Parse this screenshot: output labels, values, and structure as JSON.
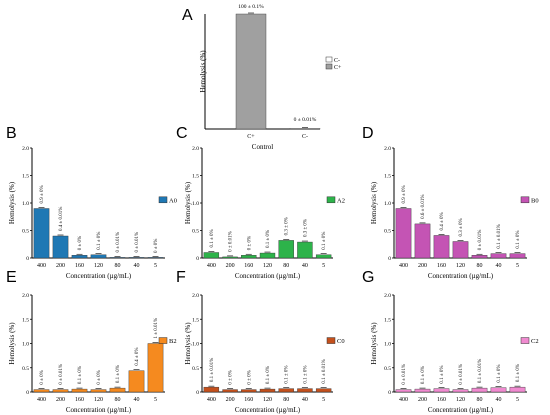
{
  "chart_data": [
    {
      "panel": "A",
      "type": "bar",
      "categories": [
        "C+",
        "C-"
      ],
      "values": [
        100,
        0.01
      ],
      "data_labels": [
        "100 ± 0.1%",
        "0 ± 0.01%"
      ],
      "ylabel": "Hemolysis (%)",
      "xlabel": "Control",
      "ylim": [
        0,
        100
      ],
      "legend": {
        "placement": "right",
        "entries": [
          "C-",
          "C+"
        ],
        "colors": [
          "#ffffff",
          "#a0a0a0"
        ]
      },
      "colors": [
        "#a0a0a0",
        "#ffffff"
      ]
    },
    {
      "panel": "B",
      "type": "bar",
      "categories": [
        "400",
        "200",
        "160",
        "120",
        "80",
        "40",
        "5"
      ],
      "values": [
        0.9,
        0.4,
        0.05,
        0.06,
        0.01,
        0.01,
        0.0
      ],
      "data_labels": [
        "0.9 ± 0%",
        "0.4 ± 0.01%",
        "0 ± 0%",
        "0.1 ± 0%",
        "0 ± 0.01%",
        "0 ± 0.01%",
        "0 ± 0%"
      ],
      "ylabel": "Hemolysis (%)",
      "xlabel": "Concentration (µg/mL)",
      "yticks": [
        "0",
        "0.5",
        "1.0",
        "1.5",
        "2.0"
      ],
      "ylim": [
        0,
        2
      ],
      "legend": {
        "placement": "right",
        "entries": [
          "A0"
        ],
        "colors": [
          "#1f78b4"
        ]
      },
      "color": "#1f78b4"
    },
    {
      "panel": "C",
      "type": "bar",
      "categories": [
        "400",
        "200",
        "160",
        "120",
        "80",
        "40",
        "5"
      ],
      "values": [
        0.1,
        0.02,
        0.05,
        0.09,
        0.32,
        0.29,
        0.06
      ],
      "data_labels": [
        "0.1 ± 0%",
        "0 ± 0.01%",
        "0 ± 0%",
        "0.1 ± 0%",
        "0.3 ± 0%",
        "0.3 ± 0%",
        "0.1 ± 0%"
      ],
      "ylabel": "Hemolysis (%)",
      "xlabel": "Concentration (µg/mL)",
      "yticks": [
        "0",
        "0.5",
        "1.0",
        "1.5",
        "2.0"
      ],
      "ylim": [
        0,
        2
      ],
      "legend": {
        "placement": "right",
        "entries": [
          "A2"
        ],
        "colors": [
          "#2db34a"
        ]
      },
      "color": "#2db34a"
    },
    {
      "panel": "D",
      "type": "bar",
      "categories": [
        "400",
        "200",
        "160",
        "120",
        "80",
        "40",
        "5"
      ],
      "values": [
        0.9,
        0.62,
        0.41,
        0.3,
        0.05,
        0.08,
        0.08
      ],
      "data_labels": [
        "0.9 ± 0%",
        "0.6 ± 0.01%",
        "0.4 ± 0%",
        "0.3 ± 0%",
        "0 ± 0.01%",
        "0.1 ± 0.01%",
        "0.1 ± 0%"
      ],
      "ylabel": "Hemolysis (%)",
      "xlabel": "Concentration (µg/mL)",
      "yticks": [
        "0",
        "0.5",
        "1.0",
        "1.5",
        "2.0"
      ],
      "ylim": [
        0,
        2
      ],
      "legend": {
        "placement": "right",
        "entries": [
          "B0"
        ],
        "colors": [
          "#c454b4"
        ]
      },
      "color": "#c454b4"
    },
    {
      "panel": "E",
      "type": "bar",
      "categories": [
        "400",
        "200",
        "160",
        "120",
        "80",
        "40",
        "5"
      ],
      "values": [
        0.05,
        0.05,
        0.06,
        0.05,
        0.08,
        0.44,
        1.0
      ],
      "data_labels": [
        "0 ± 0%",
        "0 ± 0.01%",
        "0.1 ± 0%",
        "0 ± 0%",
        "0.1 ± 0%",
        "0.4 ± 0%",
        "1 ± 0.01%"
      ],
      "ylabel": "Hemolysis (%)",
      "xlabel": "Concentration (µg/mL)",
      "yticks": [
        "0",
        "0.5",
        "1.0",
        "1.5",
        "2.0"
      ],
      "ylim": [
        0,
        2
      ],
      "legend": {
        "placement": "right",
        "entries": [
          "B2"
        ],
        "colors": [
          "#f58a1f"
        ]
      },
      "color": "#f58a1f"
    },
    {
      "panel": "F",
      "type": "bar",
      "categories": [
        "400",
        "200",
        "160",
        "120",
        "80",
        "40",
        "5"
      ],
      "values": [
        0.1,
        0.05,
        0.05,
        0.06,
        0.07,
        0.07,
        0.07
      ],
      "data_labels": [
        "0.1 ± 0.01%",
        "0 ± 0%",
        "0 ± 0%",
        "0.1 ± 0%",
        "0.1 ± 0%",
        "0.1 ± 0%",
        "0.1 ± 0.01%"
      ],
      "ylabel": "Hemolysis (%)",
      "xlabel": "Concentration (µg/mL)",
      "yticks": [
        "0",
        "0.5",
        "1.0",
        "1.5",
        "2.0"
      ],
      "ylim": [
        0,
        2
      ],
      "legend": {
        "placement": "right",
        "entries": [
          "C0"
        ],
        "colors": [
          "#c4501c"
        ]
      },
      "color": "#c4501c"
    },
    {
      "panel": "G",
      "type": "bar",
      "categories": [
        "400",
        "200",
        "160",
        "120",
        "80",
        "40",
        "5"
      ],
      "values": [
        0.05,
        0.06,
        0.07,
        0.05,
        0.08,
        0.09,
        0.1
      ],
      "data_labels": [
        "0 ± 0.01%",
        "0.1 ± 0%",
        "0.1 ± 0%",
        "0 ± 0.01%",
        "0.1 ± 0.01%",
        "0.1 ± 0%",
        "0.1 ± 0%"
      ],
      "ylabel": "Hemolysis (%)",
      "xlabel": "Concentration (µg/mL)",
      "yticks": [
        "0",
        "0.5",
        "1.0",
        "1.5",
        "2.0"
      ],
      "ylim": [
        0,
        2
      ],
      "legend": {
        "placement": "right",
        "entries": [
          "C2"
        ],
        "colors": [
          "#f08ad0"
        ]
      },
      "color": "#f08ad0"
    }
  ]
}
